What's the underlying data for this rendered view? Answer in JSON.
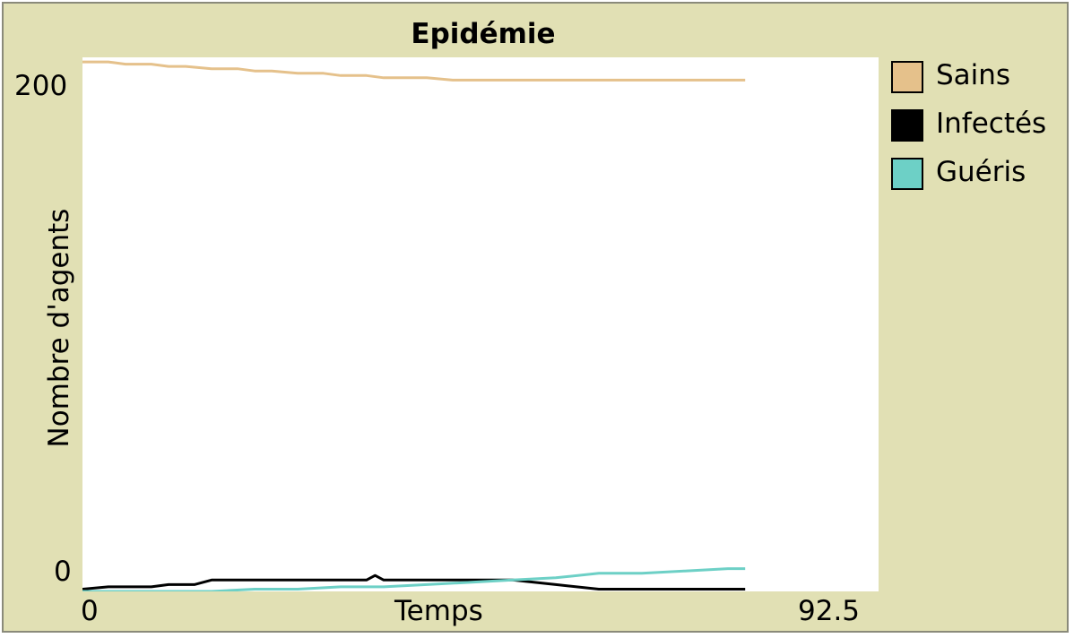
{
  "chart_data": {
    "type": "line",
    "title": "Epidémie",
    "xlabel": "Temps",
    "ylabel": "Nombre d'agents",
    "xlim": [
      0,
      92.5
    ],
    "ylim": [
      0,
      235
    ],
    "x_tick_labels": [
      "0",
      "92.5"
    ],
    "y_tick_labels": [
      "0",
      "200"
    ],
    "legend_position": "right",
    "series": [
      {
        "name": "Sains",
        "color": "#e5c18b",
        "x": [
          0,
          3,
          5,
          8,
          10,
          12,
          15,
          18,
          20,
          22,
          25,
          28,
          30,
          33,
          35,
          38,
          40,
          43,
          45,
          48,
          50,
          55,
          60,
          65,
          70,
          75,
          77
        ],
        "y": [
          233,
          233,
          232,
          232,
          231,
          231,
          230,
          230,
          229,
          229,
          228,
          228,
          227,
          227,
          226,
          226,
          226,
          225,
          225,
          225,
          225,
          225,
          225,
          225,
          225,
          225,
          225
        ]
      },
      {
        "name": "Infectés",
        "color": "#000000",
        "x": [
          0,
          3,
          5,
          8,
          10,
          13,
          15,
          18,
          20,
          25,
          30,
          33,
          34,
          35,
          40,
          45,
          48,
          50,
          55,
          60,
          65,
          70,
          75,
          77
        ],
        "y": [
          1,
          2,
          2,
          2,
          3,
          3,
          5,
          5,
          5,
          5,
          5,
          5,
          7,
          5,
          5,
          5,
          5,
          5,
          3,
          1,
          1,
          1,
          1,
          1
        ]
      },
      {
        "name": "Guéris",
        "color": "#6dd0c6",
        "x": [
          0,
          5,
          10,
          15,
          20,
          25,
          30,
          35,
          40,
          45,
          50,
          55,
          60,
          65,
          70,
          75,
          77
        ],
        "y": [
          0,
          0,
          0,
          0,
          1,
          1,
          2,
          2,
          3,
          4,
          5,
          6,
          8,
          8,
          9,
          10,
          10
        ]
      }
    ]
  }
}
